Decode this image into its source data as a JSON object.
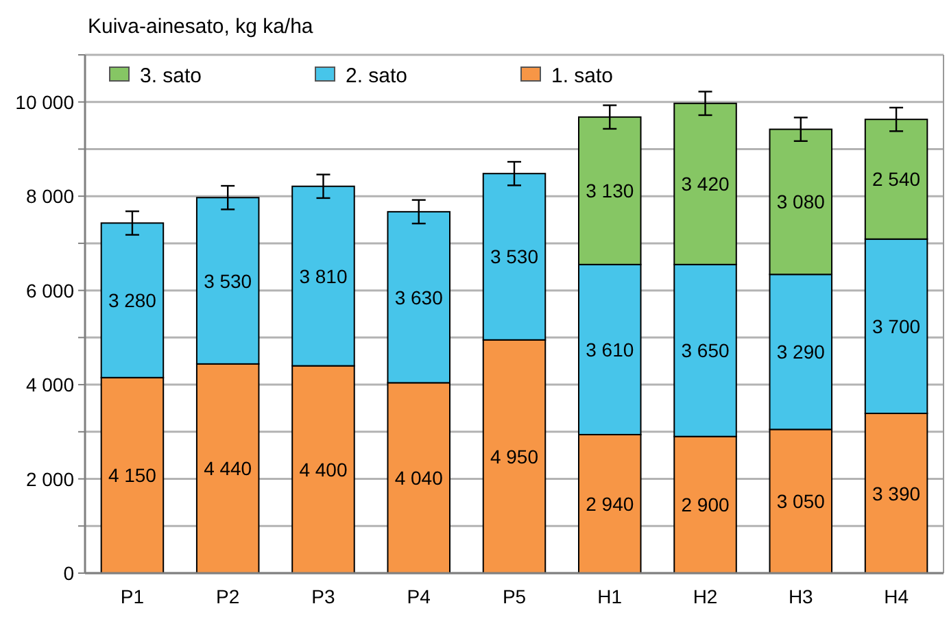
{
  "chart_data": {
    "type": "bar",
    "stacked": true,
    "ylabel": "Kuiva-ainesato, kg ka/ha",
    "categories": [
      "P1",
      "P2",
      "P3",
      "P4",
      "P5",
      "H1",
      "H2",
      "H3",
      "H4"
    ],
    "series": [
      {
        "name": "1. sato",
        "color": "#f79646",
        "values": [
          4150,
          4440,
          4400,
          4040,
          4950,
          2940,
          2900,
          3050,
          3390
        ],
        "value_labels": [
          "4 150",
          "4 440",
          "4 400",
          "4 040",
          "4 950",
          "2 940",
          "2 900",
          "3 050",
          "3 390"
        ]
      },
      {
        "name": "2. sato",
        "color": "#47c5ea",
        "values": [
          3280,
          3530,
          3810,
          3630,
          3530,
          3610,
          3650,
          3290,
          3700
        ],
        "value_labels": [
          "3 280",
          "3 530",
          "3 810",
          "3 630",
          "3 530",
          "3 610",
          "3 650",
          "3 290",
          "3 700"
        ],
        "errors": [
          250,
          250,
          250,
          250,
          250,
          null,
          null,
          null,
          null
        ]
      },
      {
        "name": "3. sato",
        "color": "#86c664",
        "values": [
          null,
          null,
          null,
          null,
          null,
          3130,
          3420,
          3080,
          2540
        ],
        "value_labels": [
          null,
          null,
          null,
          null,
          null,
          "3 130",
          "3 420",
          "3 080",
          "2 540"
        ],
        "errors": [
          null,
          null,
          null,
          null,
          null,
          250,
          250,
          250,
          250
        ]
      }
    ],
    "ylim": [
      0,
      11000
    ],
    "yticks": [
      {
        "value": 0,
        "label": "0"
      },
      {
        "value": 1000,
        "label": null
      },
      {
        "value": 2000,
        "label": "2 000"
      },
      {
        "value": 3000,
        "label": null
      },
      {
        "value": 4000,
        "label": "4 000"
      },
      {
        "value": 5000,
        "label": null
      },
      {
        "value": 6000,
        "label": "6 000"
      },
      {
        "value": 7000,
        "label": null
      },
      {
        "value": 8000,
        "label": "8 000"
      },
      {
        "value": 9000,
        "label": null
      },
      {
        "value": 10000,
        "label": "10 000"
      },
      {
        "value": 11000,
        "label": null
      }
    ],
    "grid": true,
    "legend": "top left"
  }
}
